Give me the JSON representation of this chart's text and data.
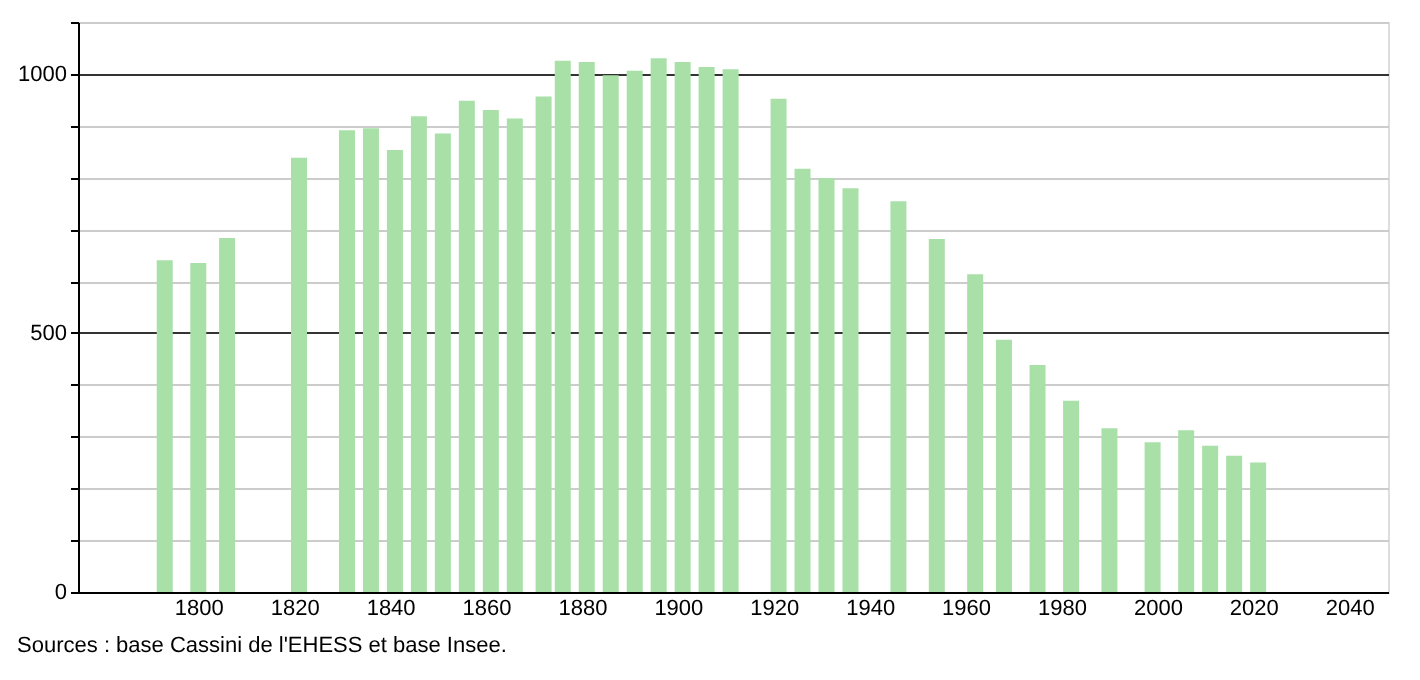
{
  "chart_data": {
    "type": "bar",
    "x": [
      1793,
      1800,
      1806,
      1821,
      1831,
      1836,
      1841,
      1846,
      1851,
      1856,
      1861,
      1866,
      1872,
      1876,
      1881,
      1886,
      1891,
      1896,
      1901,
      1906,
      1911,
      1921,
      1926,
      1931,
      1936,
      1946,
      1954,
      1962,
      1968,
      1975,
      1982,
      1990,
      1999,
      2006,
      2011,
      2016,
      2021
    ],
    "values": [
      640,
      635,
      683,
      838,
      891,
      895,
      853,
      918,
      885,
      948,
      930,
      914,
      956,
      1025,
      1023,
      997,
      1006,
      1030,
      1023,
      1013,
      1009,
      952,
      817,
      799,
      779,
      754,
      681,
      613,
      487,
      438,
      369,
      316,
      289,
      312,
      282,
      263,
      250
    ],
    "color": "#a8e0a8",
    "xlim": [
      1777,
      2046
    ],
    "xticks": [
      1800,
      1820,
      1840,
      1860,
      1880,
      1900,
      1920,
      1940,
      1960,
      1980,
      2000,
      2020,
      2040
    ],
    "ylim": [
      0,
      1100
    ],
    "yticks": [
      0,
      {
        "value": 100,
        "label": null
      },
      {
        "value": 200,
        "label": null
      },
      {
        "value": 300,
        "label": null
      },
      {
        "value": 400,
        "label": null
      },
      500,
      {
        "value": 600,
        "label": null
      },
      {
        "value": 700,
        "label": null
      },
      {
        "value": 800,
        "label": null
      },
      {
        "value": 900,
        "label": null
      },
      1000,
      {
        "value": 1100,
        "label": null
      }
    ],
    "grid": "y",
    "annotations": [
      "Sources : base Cassini de l'EHESS et base Insee."
    ]
  }
}
